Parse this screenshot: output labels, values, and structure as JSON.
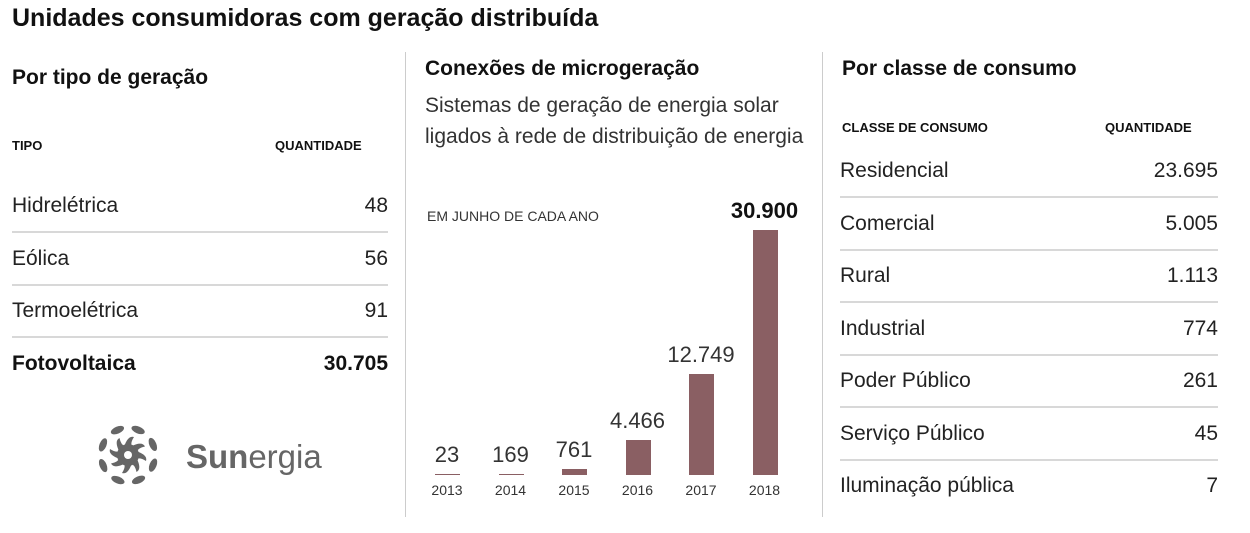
{
  "title": "Unidades consumidoras com geração distribuída",
  "left": {
    "title": "Por tipo de geração",
    "col1": "TIPO",
    "col2": "QUANTIDADE",
    "rows": [
      {
        "label": "Hidrelétrica",
        "value": "48"
      },
      {
        "label": "Eólica",
        "value": "56"
      },
      {
        "label": "Termoelétrica",
        "value": "91"
      },
      {
        "label": "Fotovoltaica",
        "value": "30.705"
      }
    ]
  },
  "logo": {
    "text_bold": "Sun",
    "text_light": "ergia"
  },
  "chart_data": {
    "type": "bar",
    "title": "Conexões de microgeração",
    "subtitle": "Sistemas de geração de energia solar ligados à rede de distribuição de energia",
    "note": "EM JUNHO DE CADA ANO",
    "categories": [
      "2013",
      "2014",
      "2015",
      "2016",
      "2017",
      "2018"
    ],
    "values": [
      23,
      169,
      761,
      4466,
      12749,
      30900
    ],
    "labels": [
      "23",
      "169",
      "761",
      "4.466",
      "12.749",
      "30.900"
    ],
    "color": "#8a5f63",
    "xlabel": "",
    "ylabel": "",
    "ylim": [
      0,
      30900
    ]
  },
  "right": {
    "title": "Por classe de consumo",
    "col1": "CLASSE DE CONSUMO",
    "col2": "QUANTIDADE",
    "rows": [
      {
        "label": "Residencial",
        "value": "23.695"
      },
      {
        "label": "Comercial",
        "value": "5.005"
      },
      {
        "label": "Rural",
        "value": "1.113"
      },
      {
        "label": "Industrial",
        "value": "774"
      },
      {
        "label": "Poder Público",
        "value": "261"
      },
      {
        "label": "Serviço Público",
        "value": "45"
      },
      {
        "label": "Iluminação pública",
        "value": "7"
      }
    ]
  }
}
